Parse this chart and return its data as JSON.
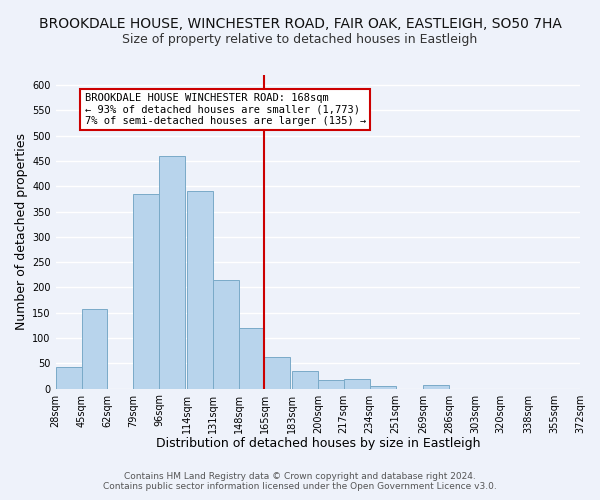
{
  "title": "BROOKDALE HOUSE, WINCHESTER ROAD, FAIR OAK, EASTLEIGH, SO50 7HA",
  "subtitle": "Size of property relative to detached houses in Eastleigh",
  "xlabel": "Distribution of detached houses by size in Eastleigh",
  "ylabel": "Number of detached properties",
  "bar_left_edges": [
    28,
    45,
    62,
    79,
    96,
    114,
    131,
    148,
    165,
    183,
    200,
    217,
    234,
    251,
    269,
    286,
    303,
    320,
    338,
    355
  ],
  "bar_heights": [
    42,
    158,
    0,
    385,
    460,
    390,
    215,
    120,
    62,
    35,
    17,
    19,
    5,
    0,
    7,
    0,
    0,
    0,
    0,
    0
  ],
  "bin_width": 17,
  "bar_color": "#b8d4ec",
  "bar_edge_color": "#7aaac8",
  "vline_x": 165,
  "vline_color": "#cc0000",
  "xlim_left": 28,
  "xlim_right": 372,
  "ylim_top": 620,
  "yticks": [
    0,
    50,
    100,
    150,
    200,
    250,
    300,
    350,
    400,
    450,
    500,
    550,
    600
  ],
  "xtick_labels": [
    "28sqm",
    "45sqm",
    "62sqm",
    "79sqm",
    "96sqm",
    "114sqm",
    "131sqm",
    "148sqm",
    "165sqm",
    "183sqm",
    "200sqm",
    "217sqm",
    "234sqm",
    "251sqm",
    "269sqm",
    "286sqm",
    "303sqm",
    "320sqm",
    "338sqm",
    "355sqm",
    "372sqm"
  ],
  "xtick_positions": [
    28,
    45,
    62,
    79,
    96,
    114,
    131,
    148,
    165,
    183,
    200,
    217,
    234,
    251,
    269,
    286,
    303,
    320,
    338,
    355,
    372
  ],
  "annotation_line1": "BROOKDALE HOUSE WINCHESTER ROAD: 168sqm",
  "annotation_line2": "← 93% of detached houses are smaller (1,773)",
  "annotation_line3": "7% of semi-detached houses are larger (135) →",
  "annotation_box_color": "#cc0000",
  "footer_line1": "Contains HM Land Registry data © Crown copyright and database right 2024.",
  "footer_line2": "Contains public sector information licensed under the Open Government Licence v3.0.",
  "bg_color": "#eef2fa",
  "grid_color": "#ffffff",
  "title_fontsize": 10,
  "subtitle_fontsize": 9,
  "axis_label_fontsize": 9,
  "tick_fontsize": 7,
  "annotation_fontsize": 7.5,
  "footer_fontsize": 6.5
}
